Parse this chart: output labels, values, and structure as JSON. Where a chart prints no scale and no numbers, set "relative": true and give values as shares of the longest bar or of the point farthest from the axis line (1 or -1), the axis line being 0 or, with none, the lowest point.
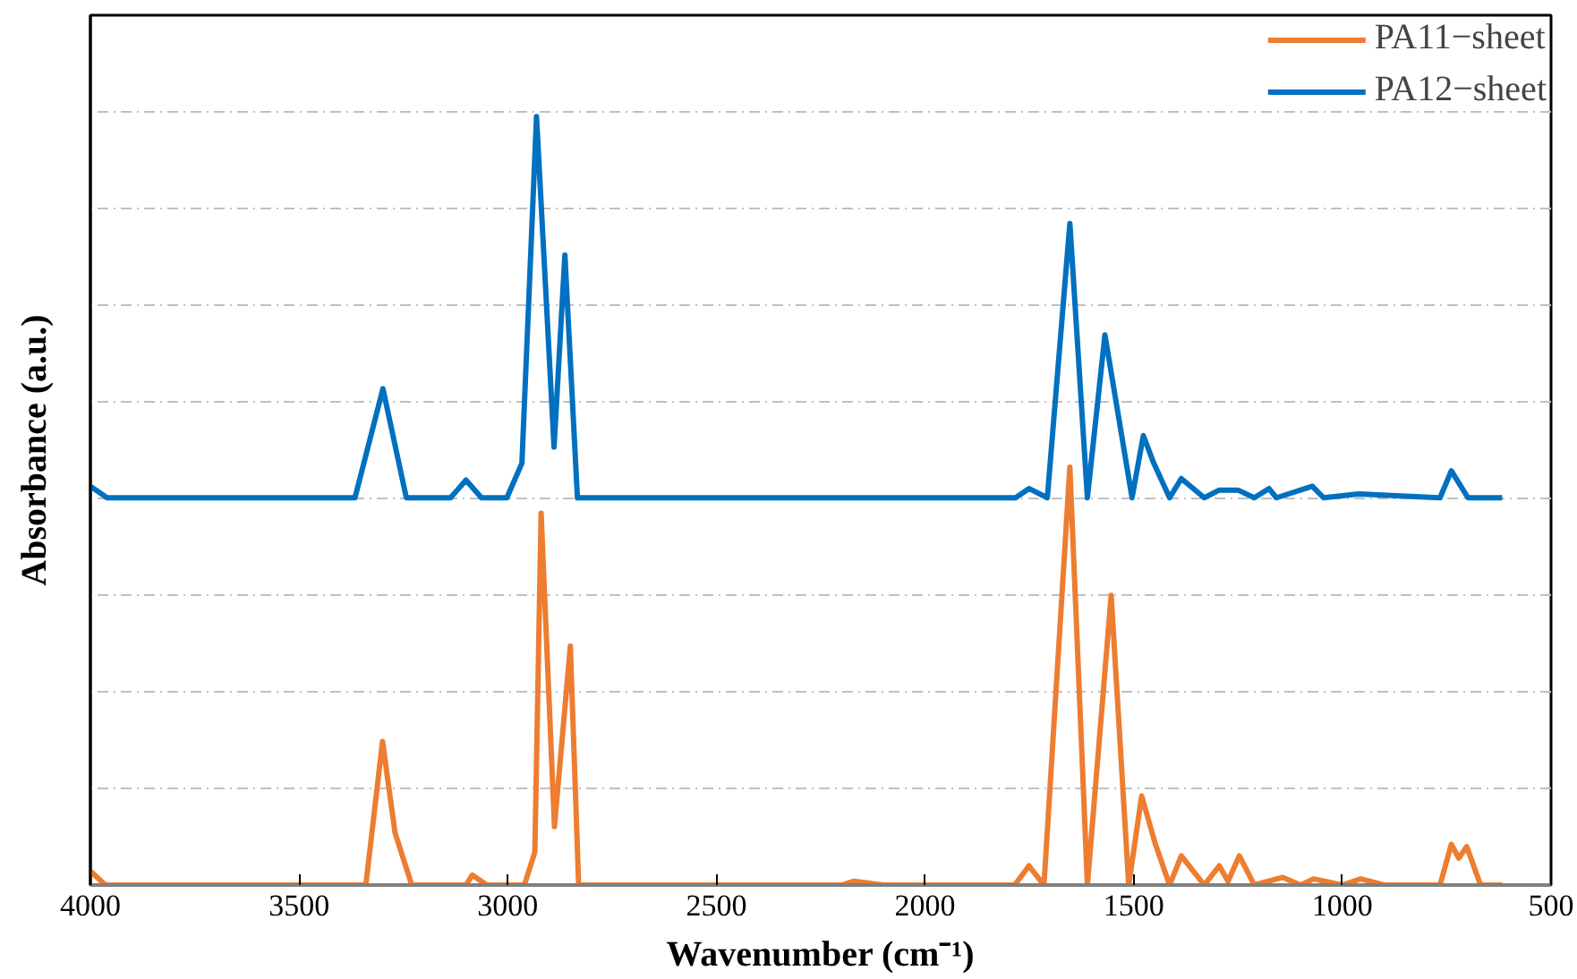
{
  "chart_data": {
    "type": "line",
    "xlabel": "Wavenumber (cm⁻¹)",
    "ylabel": "Absorbance (a.u.)",
    "relative": true,
    "xlim": [
      4000,
      500
    ],
    "xticks": [
      4000,
      3500,
      3000,
      2500,
      2000,
      1500,
      1000,
      500
    ],
    "grid": "y",
    "legend": "top right",
    "line_style": "solid",
    "marker": "none",
    "series": [
      {
        "name": "PA11−sheet",
        "color": "#ed7d31",
        "x": [
          4000,
          3964,
          3340,
          3300,
          3270,
          3230,
          3100,
          3085,
          3050,
          2960,
          2935,
          2920,
          2888,
          2850,
          2830,
          2800,
          2200,
          2170,
          2100,
          1785,
          1751,
          1715,
          1653,
          1611,
          1554,
          1512,
          1481,
          1448,
          1414,
          1386,
          1331,
          1295,
          1274,
          1247,
          1211,
          1143,
          1100,
          1069,
          1000,
          956,
          900,
          766,
          739,
          721,
          702,
          669,
          617
        ],
        "values": [
          0.018,
          0,
          0,
          0.187,
          0.068,
          0,
          0,
          0.013,
          0,
          0,
          0.043,
          0.484,
          0.076,
          0.311,
          0,
          0,
          0,
          0.005,
          0,
          0,
          0.025,
          0,
          0.544,
          0,
          0.377,
          0,
          0.116,
          0.053,
          0,
          0.038,
          0,
          0.025,
          0.005,
          0.038,
          0,
          0.01,
          0,
          0.008,
          0,
          0.008,
          0,
          0,
          0.053,
          0.035,
          0.05,
          0,
          0
        ]
      },
      {
        "name": "PA12−sheet",
        "color": "#0070c0",
        "x": [
          4000,
          3960,
          3366,
          3299,
          3243,
          3137,
          3100,
          3063,
          3002,
          2966,
          2931,
          2889,
          2863,
          2833,
          1783,
          1751,
          1707,
          1653,
          1611,
          1569,
          1504,
          1477,
          1452,
          1414,
          1386,
          1331,
          1295,
          1250,
          1211,
          1176,
          1158,
          1072,
          1045,
          962,
          766,
          739,
          699,
          617
        ],
        "values": [
          0.519,
          0.504,
          0.504,
          0.646,
          0.504,
          0.504,
          0.527,
          0.504,
          0.504,
          0.549,
          1,
          0.57,
          0.82,
          0.504,
          0.504,
          0.516,
          0.504,
          0.861,
          0.504,
          0.716,
          0.504,
          0.585,
          0.549,
          0.504,
          0.529,
          0.504,
          0.514,
          0.514,
          0.504,
          0.516,
          0.504,
          0.519,
          0.504,
          0.509,
          0.504,
          0.539,
          0.504,
          0.504
        ]
      }
    ]
  }
}
